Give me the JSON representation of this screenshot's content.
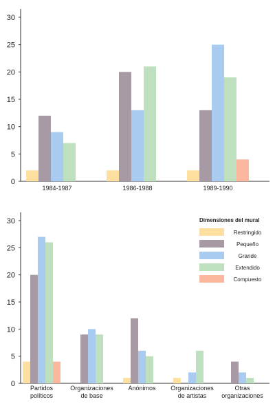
{
  "colors": {
    "Restringido": "#FDDFA0",
    "Pequeño": "#A89AA5",
    "Grande": "#A9CBF0",
    "Extendido": "#BFE0BE",
    "Compuesto": "#FBB89E"
  },
  "chart_data": [
    {
      "type": "bar",
      "categories": [
        "1984-1987",
        "1986-1988",
        "1989-1990"
      ],
      "ylim": [
        0,
        30
      ],
      "yticks": [
        0,
        5,
        10,
        15,
        20,
        25,
        30
      ],
      "series": [
        {
          "name": "Restringido",
          "values": [
            2,
            2,
            2
          ]
        },
        {
          "name": "Pequeño",
          "values": [
            12,
            20,
            13
          ]
        },
        {
          "name": "Grande",
          "values": [
            9,
            13,
            25
          ]
        },
        {
          "name": "Extendido",
          "values": [
            7,
            21,
            19
          ]
        },
        {
          "name": "Compuesto",
          "values": [
            0,
            0,
            4
          ]
        }
      ]
    },
    {
      "type": "bar",
      "categories": [
        "Partidos\npolíticos",
        "Organizaciones\nde base",
        "Anónimos",
        "Organizaciones\nde artistas",
        "Otras\norganizaciones"
      ],
      "ylim": [
        0,
        30
      ],
      "yticks": [
        0,
        5,
        10,
        15,
        20,
        25,
        30
      ],
      "legend": {
        "title": "Dimensiones del mural",
        "placement": "top-right",
        "entries": [
          "Restringido",
          "Pequeño",
          "Grande",
          "Extendido",
          "Compuesto"
        ]
      },
      "series": [
        {
          "name": "Restringido",
          "values": [
            4,
            0,
            1,
            1,
            0
          ]
        },
        {
          "name": "Pequeño",
          "values": [
            20,
            9,
            12,
            0,
            4
          ]
        },
        {
          "name": "Grande",
          "values": [
            27,
            10,
            6,
            2,
            2
          ]
        },
        {
          "name": "Extendido",
          "values": [
            26,
            9,
            5,
            6,
            1
          ]
        },
        {
          "name": "Compuesto",
          "values": [
            4,
            0,
            0,
            0,
            0
          ]
        }
      ]
    }
  ]
}
